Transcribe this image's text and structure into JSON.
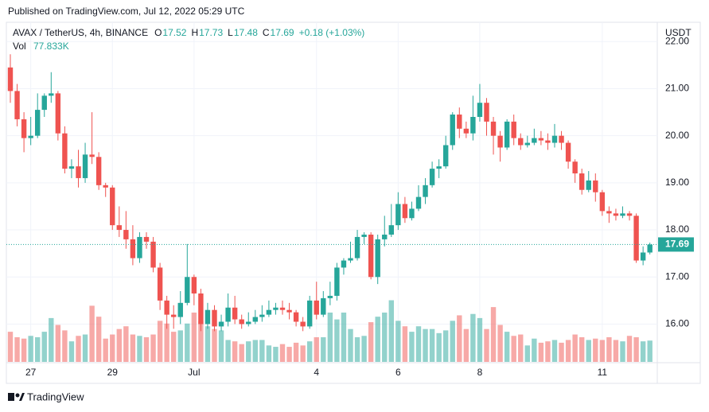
{
  "header": {
    "published": "Published on TradingView.com, Jul 12, 2022 05:29 UTC",
    "logo": "TradingView"
  },
  "chart_data": {
    "type": "candlestick",
    "symbol": "AVAX / TetherUS, 4h, BINANCE",
    "ohlc_labels": [
      "O",
      "H",
      "L",
      "C"
    ],
    "change": "+0.18 (+1.03%)",
    "volume_name": "Vol",
    "volume_label": "77.833K",
    "currency": "USDT",
    "up_color": "#26a69a",
    "down_color": "#ef5350",
    "categories": [
      null,
      null,
      null,
      "27",
      null,
      null,
      null,
      null,
      null,
      null,
      null,
      null,
      null,
      null,
      null,
      "29",
      null,
      null,
      null,
      null,
      null,
      null,
      null,
      null,
      null,
      null,
      null,
      "Jul",
      null,
      null,
      null,
      null,
      null,
      null,
      null,
      null,
      null,
      null,
      null,
      null,
      null,
      null,
      null,
      null,
      null,
      "4",
      null,
      null,
      null,
      null,
      null,
      null,
      null,
      null,
      null,
      null,
      null,
      "6",
      null,
      null,
      null,
      null,
      null,
      null,
      null,
      null,
      null,
      null,
      null,
      "8",
      null,
      null,
      null,
      null,
      null,
      null,
      null,
      null,
      null,
      null,
      null,
      null,
      null,
      null,
      null,
      null,
      null,
      "11",
      null,
      null,
      null,
      null,
      null,
      null,
      null
    ],
    "open": [
      21.45,
      20.95,
      20.35,
      19.95,
      20.0,
      20.55,
      20.85,
      20.9,
      20.05,
      19.3,
      19.35,
      19.1,
      19.6,
      19.55,
      18.95,
      18.9,
      18.1,
      18.0,
      17.8,
      17.4,
      17.85,
      17.75,
      17.2,
      16.5,
      16.2,
      16.15,
      16.45,
      17.0,
      16.65,
      16.0,
      16.3,
      15.95,
      16.05,
      16.35,
      16.1,
      16.0,
      16.05,
      16.15,
      16.2,
      16.3,
      16.35,
      16.3,
      16.25,
      16.05,
      15.95,
      16.5,
      16.2,
      16.55,
      16.6,
      17.2,
      17.35,
      17.4,
      17.85,
      17.9,
      17.0,
      17.8,
      17.9,
      18.1,
      18.55,
      18.25,
      18.45,
      18.7,
      18.95,
      19.3,
      19.35,
      19.8,
      20.45,
      20.15,
      20.05,
      20.4,
      20.7,
      20.3,
      20.0,
      19.75,
      20.3,
      19.95,
      19.8,
      19.85,
      19.95,
      19.9,
      19.85,
      20.0,
      19.85,
      19.45,
      19.2,
      18.85,
      19.05,
      18.8,
      18.4,
      18.35,
      18.3,
      18.35,
      18.3,
      17.35,
      17.52
    ],
    "high": [
      21.73,
      21.1,
      20.5,
      20.4,
      20.9,
      20.9,
      21.35,
      20.95,
      20.2,
      19.5,
      19.7,
      19.85,
      20.5,
      19.65,
      19.0,
      18.95,
      18.5,
      18.4,
      18.1,
      17.95,
      17.95,
      17.85,
      17.3,
      16.6,
      16.4,
      16.7,
      17.7,
      17.05,
      16.75,
      16.45,
      16.4,
      16.2,
      16.65,
      16.6,
      16.2,
      16.25,
      16.3,
      16.4,
      16.5,
      16.45,
      16.5,
      16.45,
      16.3,
      16.15,
      16.6,
      16.9,
      16.7,
      16.9,
      17.3,
      17.4,
      17.75,
      18.0,
      17.95,
      17.95,
      17.9,
      18.3,
      18.55,
      18.8,
      18.7,
      18.6,
      18.95,
      19.1,
      19.45,
      19.5,
      20.0,
      20.5,
      20.6,
      20.3,
      20.85,
      21.1,
      20.8,
      20.4,
      20.1,
      20.35,
      20.45,
      20.05,
      20.0,
      20.15,
      20.1,
      20.05,
      20.25,
      20.1,
      19.9,
      19.5,
      19.3,
      19.25,
      19.2,
      18.85,
      18.5,
      18.45,
      18.5,
      18.4,
      18.35,
      17.65,
      17.73
    ],
    "low": [
      20.7,
      20.2,
      19.65,
      19.8,
      19.95,
      20.4,
      20.7,
      19.9,
      19.2,
      19.1,
      18.9,
      19.0,
      19.4,
      18.85,
      18.7,
      18.0,
      17.85,
      17.6,
      17.25,
      17.3,
      17.6,
      17.1,
      16.3,
      15.9,
      15.9,
      16.0,
      16.4,
      16.4,
      15.85,
      15.9,
      15.85,
      15.85,
      15.95,
      16.0,
      15.9,
      15.95,
      16.0,
      16.05,
      16.15,
      16.2,
      16.2,
      16.1,
      15.95,
      15.85,
      15.9,
      16.1,
      16.15,
      16.4,
      16.5,
      17.05,
      17.3,
      17.35,
      17.7,
      16.95,
      16.85,
      17.65,
      17.85,
      18.0,
      18.15,
      18.2,
      18.4,
      18.55,
      18.9,
      19.1,
      19.3,
      19.7,
      19.95,
      19.95,
      19.9,
      20.3,
      20.0,
      19.6,
      19.45,
      19.7,
      19.8,
      19.7,
      19.75,
      19.8,
      19.8,
      19.7,
      19.75,
      19.7,
      19.3,
      19.0,
      18.75,
      18.8,
      18.6,
      18.3,
      18.15,
      18.2,
      18.25,
      18.2,
      17.3,
      17.25,
      17.48
    ],
    "close": [
      20.95,
      20.35,
      19.95,
      20.0,
      20.55,
      20.85,
      20.9,
      20.05,
      19.3,
      19.35,
      19.1,
      19.6,
      19.55,
      18.95,
      18.9,
      18.1,
      18.0,
      17.8,
      17.4,
      17.85,
      17.75,
      17.2,
      16.5,
      16.2,
      16.15,
      16.45,
      17.0,
      16.65,
      16.0,
      16.3,
      15.95,
      16.05,
      16.35,
      16.1,
      16.0,
      16.05,
      16.15,
      16.2,
      16.3,
      16.35,
      16.3,
      16.25,
      16.05,
      15.95,
      16.5,
      16.2,
      16.55,
      16.6,
      17.2,
      17.35,
      17.4,
      17.85,
      17.9,
      17.0,
      17.8,
      17.9,
      18.1,
      18.55,
      18.25,
      18.45,
      18.7,
      18.95,
      19.3,
      19.35,
      19.8,
      20.45,
      20.15,
      20.05,
      20.4,
      20.7,
      20.3,
      20.0,
      19.75,
      20.3,
      19.95,
      19.8,
      19.85,
      19.95,
      19.9,
      19.85,
      20.0,
      19.85,
      19.45,
      19.2,
      18.85,
      19.05,
      18.8,
      18.4,
      18.35,
      18.3,
      18.35,
      18.3,
      17.35,
      17.52,
      17.69
    ],
    "volume": [
      110000,
      90000,
      85000,
      95000,
      90000,
      110000,
      160000,
      135000,
      115000,
      75000,
      95000,
      100000,
      205000,
      165000,
      85000,
      100000,
      120000,
      130000,
      100000,
      95000,
      90000,
      100000,
      150000,
      140000,
      110000,
      115000,
      140000,
      180000,
      150000,
      130000,
      120000,
      115000,
      80000,
      75000,
      65000,
      75000,
      80000,
      80000,
      60000,
      55000,
      65000,
      55000,
      70000,
      60000,
      75000,
      90000,
      90000,
      180000,
      155000,
      180000,
      120000,
      90000,
      95000,
      145000,
      165000,
      180000,
      225000,
      150000,
      130000,
      110000,
      130000,
      120000,
      120000,
      105000,
      115000,
      150000,
      170000,
      120000,
      175000,
      160000,
      120000,
      200000,
      135000,
      110000,
      95000,
      100000,
      60000,
      85000,
      70000,
      75000,
      80000,
      70000,
      80000,
      100000,
      90000,
      80000,
      85000,
      80000,
      90000,
      80000,
      75000,
      95000,
      90000,
      75000,
      77833
    ],
    "ylim": [
      15.18,
      22.41
    ],
    "yticks": [
      {
        "value": 16,
        "label": "16.00"
      },
      {
        "value": 17,
        "label": "17.00"
      },
      {
        "value": 18,
        "label": "18.00"
      },
      {
        "value": 19,
        "label": "19.00"
      },
      {
        "value": 20,
        "label": "20.00"
      },
      {
        "value": 21,
        "label": "21.00"
      },
      {
        "value": 22,
        "label": "22.00"
      }
    ],
    "y2lim": [
      0,
      450000
    ],
    "grid": true
  }
}
